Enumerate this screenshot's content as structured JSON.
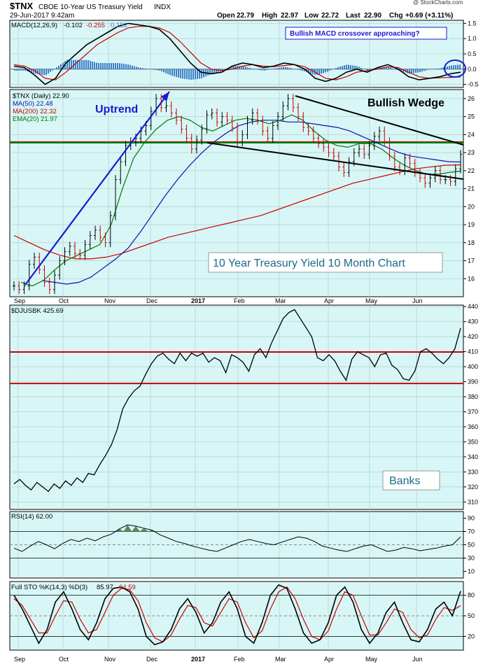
{
  "header": {
    "symbol": "$TNX",
    "name": "CBOE 10-Year US Treasury Yield",
    "exchange": "INDX",
    "timestamp": "29-Jun-2017 9:42am",
    "watermark": "@ StockCharts.com",
    "quote": {
      "open_label": "Open",
      "open": "22.79",
      "high_label": "High",
      "high": "22.97",
      "low_label": "Low",
      "low": "22.72",
      "last_label": "Last",
      "last": "22.90",
      "chg_label": "Chg",
      "chg": "+0.69 (+3.11%)"
    }
  },
  "months": [
    "Sep",
    "Oct",
    "Nov",
    "Dec",
    "2017",
    "Feb",
    "Mar",
    "Apr",
    "May",
    "Jun"
  ],
  "colors": {
    "panel_bg": "#d8f6f6",
    "price_up": "#000000",
    "price_down": "#cc0000",
    "ma50": "#1010b0",
    "ma200": "#cc0000",
    "ema20": "#007a00",
    "trend_blue": "#1a1ad0",
    "wedge": "#000000",
    "hline_red": "#cc0000",
    "hline_green": "#008800",
    "macd_hist": "#3a80c8",
    "rsi_fill": "#5a8a5a"
  },
  "panels": {
    "macd": {
      "legend_prefix": "MACD(12,26,9)",
      "macd_value": "-0.102",
      "signal_value": "-0.255",
      "hist_value": "0.153",
      "annotation": "Bullish MACD crossover approaching?",
      "ticks": [
        "1.5",
        "1.0",
        "0.5",
        "0.0",
        "-0.5"
      ]
    },
    "price": {
      "legend_title": "$TNX (Daily) 22.90",
      "ma50_legend": "MA(50) 22.48",
      "ma200_legend": "MA(200) 22.32",
      "ema20_legend": "EMA(20) 21.97",
      "uptrend_label": "Uptrend",
      "wedge_label": "Bullish Wedge",
      "chart_title": "10 Year Treasury Yield 10 Month Chart",
      "ticks": [
        "26",
        "25",
        "24",
        "23",
        "22",
        "21",
        "20",
        "19",
        "18",
        "17",
        "16"
      ]
    },
    "banks": {
      "legend": "$DJUSBK 425.69",
      "label": "Banks",
      "ticks": [
        "440",
        "430",
        "420",
        "410",
        "400",
        "390",
        "380",
        "370",
        "360",
        "350",
        "340",
        "330",
        "320",
        "310"
      ]
    },
    "rsi": {
      "legend": "RSI(14) 62.00",
      "ticks": [
        "90",
        "70",
        "50",
        "30",
        "10"
      ]
    },
    "sto": {
      "legend_prefix": "Full STO %K(14,3) %D(3)",
      "k_value": "85.97",
      "d_value": "64.59",
      "ticks": [
        "80",
        "50",
        "20"
      ]
    }
  },
  "chart_data": [
    {
      "type": "line",
      "title": "MACD(12,26,9)",
      "x_range": [
        "2016-09-01",
        "2017-06-29"
      ],
      "ylim": [
        -0.6,
        1.6
      ],
      "series": [
        {
          "name": "MACD",
          "values": [
            0.1,
            0.05,
            -0.2,
            -0.5,
            -0.3,
            0.2,
            0.5,
            0.8,
            1.0,
            1.2,
            1.4,
            1.5,
            1.45,
            1.4,
            1.3,
            1.0,
            0.6,
            0.2,
            -0.1,
            -0.15,
            -0.1,
            0.1,
            0.2,
            0.15,
            0.05,
            0.1,
            0.2,
            0.15,
            0.0,
            -0.3,
            -0.4,
            -0.3,
            -0.1,
            0.0,
            -0.1,
            0.05,
            0.15,
            0.0,
            -0.25,
            -0.35,
            -0.3,
            -0.25,
            -0.15,
            -0.1
          ]
        },
        {
          "name": "Signal",
          "values": [
            0.15,
            0.1,
            -0.05,
            -0.3,
            -0.35,
            -0.1,
            0.2,
            0.5,
            0.8,
            1.0,
            1.2,
            1.35,
            1.4,
            1.4,
            1.35,
            1.2,
            0.9,
            0.55,
            0.2,
            0.0,
            -0.05,
            0.0,
            0.1,
            0.15,
            0.1,
            0.08,
            0.12,
            0.15,
            0.08,
            -0.1,
            -0.3,
            -0.35,
            -0.25,
            -0.1,
            -0.05,
            0.0,
            0.08,
            0.05,
            -0.1,
            -0.25,
            -0.3,
            -0.28,
            -0.27,
            -0.255
          ]
        },
        {
          "name": "Histogram",
          "values": [
            0.153
          ]
        }
      ]
    },
    {
      "type": "line",
      "title": "$TNX (Daily) 22.90",
      "ylim": [
        15,
        26.5
      ],
      "x_range": [
        "2016-09-01",
        "2017-06-29"
      ],
      "series": [
        {
          "name": "$TNX",
          "values": [
            15.6,
            15.4,
            15.6,
            16.8,
            17.2,
            16.5,
            15.8,
            15.4,
            16.2,
            17.0,
            17.5,
            17.8,
            17.4,
            17.3,
            17.9,
            18.4,
            18.7,
            18.3,
            18.0,
            19.5,
            21.5,
            22.5,
            23.4,
            23.6,
            23.8,
            24.2,
            24.5,
            25.3,
            26.0,
            25.5,
            25.6,
            25.2,
            24.8,
            24.3,
            23.8,
            23.2,
            23.7,
            24.3,
            25.1,
            25.2,
            24.7,
            25.0,
            24.8,
            24.4,
            23.6,
            24.0,
            24.8,
            25.2,
            24.8,
            24.2,
            23.8,
            24.5,
            25.0,
            25.6,
            26.0,
            25.5,
            25.0,
            24.4,
            24.2,
            23.8,
            23.5,
            23.3,
            23.0,
            22.8,
            22.2,
            21.9,
            22.5,
            23.0,
            23.2,
            22.9,
            23.4,
            23.9,
            24.2,
            23.6,
            22.8,
            22.2,
            22.0,
            22.7,
            22.4,
            21.9,
            21.6,
            21.3,
            21.6,
            22.0,
            21.5,
            21.5,
            21.4,
            22.1,
            22.9
          ]
        },
        {
          "name": "MA(50)",
          "values": [
            15.9,
            15.8,
            15.7,
            15.8,
            16.1,
            16.6,
            17.1,
            17.7,
            18.6,
            19.6,
            20.6,
            21.5,
            22.3,
            23.0,
            23.6,
            24.1,
            24.5,
            24.7,
            24.8,
            24.8,
            24.7,
            24.7,
            24.6,
            24.5,
            24.4,
            24.2,
            23.9,
            23.6,
            23.3,
            23.0,
            22.8,
            22.7,
            22.6,
            22.5,
            22.48
          ]
        },
        {
          "name": "MA(200)",
          "values": [
            18.4,
            18.0,
            17.6,
            17.3,
            17.1,
            17.1,
            17.2,
            17.4,
            17.7,
            18.0,
            18.3,
            18.5,
            18.7,
            18.9,
            19.1,
            19.3,
            19.5,
            19.8,
            20.1,
            20.4,
            20.7,
            21.0,
            21.3,
            21.5,
            21.7,
            21.9,
            22.1,
            22.2,
            22.3,
            22.32
          ]
        },
        {
          "name": "EMA(20)",
          "values": [
            15.8,
            15.6,
            15.9,
            16.5,
            17.0,
            17.3,
            17.6,
            17.9,
            19.0,
            21.0,
            22.7,
            23.6,
            24.3,
            24.8,
            25.0,
            24.8,
            24.4,
            24.2,
            24.5,
            24.8,
            24.9,
            24.8,
            24.6,
            24.8,
            25.1,
            24.8,
            24.2,
            23.7,
            23.4,
            23.3,
            23.5,
            23.5,
            23.2,
            22.7,
            22.3,
            22.0,
            21.8,
            21.8,
            21.9,
            21.97
          ]
        }
      ]
    },
    {
      "type": "line",
      "title": "$DJUSBK 425.69",
      "ylim": [
        305,
        441
      ],
      "series": [
        {
          "name": "$DJUSBK",
          "values": [
            322,
            325,
            321,
            318,
            323,
            320,
            317,
            322,
            319,
            324,
            321,
            326,
            323,
            329,
            328,
            335,
            341,
            348,
            358,
            372,
            379,
            384,
            387,
            395,
            402,
            407,
            409,
            405,
            402,
            409,
            404,
            409,
            407,
            409,
            403,
            406,
            404,
            396,
            408,
            406,
            403,
            397,
            408,
            412,
            406,
            416,
            424,
            432,
            436,
            438,
            432,
            426,
            420,
            406,
            404,
            408,
            404,
            397,
            391,
            405,
            410,
            408,
            406,
            400,
            408,
            409,
            401,
            398,
            392,
            391,
            397,
            410,
            412,
            409,
            405,
            402,
            406,
            412,
            425.69
          ]
        }
      ]
    },
    {
      "type": "line",
      "title": "RSI(14) 62.00",
      "ylim": [
        0,
        100
      ],
      "series": [
        {
          "name": "RSI(14)",
          "values": [
            45,
            40,
            48,
            55,
            50,
            44,
            52,
            58,
            55,
            60,
            56,
            62,
            66,
            74,
            80,
            78,
            75,
            72,
            65,
            60,
            55,
            52,
            48,
            45,
            42,
            40,
            45,
            50,
            55,
            58,
            55,
            52,
            50,
            54,
            58,
            62,
            60,
            55,
            48,
            45,
            42,
            40,
            44,
            48,
            50,
            45,
            40,
            42,
            46,
            44,
            41,
            43,
            45,
            48,
            50,
            62
          ]
        }
      ]
    },
    {
      "type": "line",
      "title": "Full STO %K(14,3) %D(3)",
      "ylim": [
        0,
        100
      ],
      "series": [
        {
          "name": "%K(14,3)",
          "values": [
            80,
            60,
            35,
            10,
            30,
            70,
            85,
            60,
            30,
            15,
            40,
            75,
            90,
            92,
            85,
            60,
            20,
            8,
            12,
            30,
            60,
            75,
            55,
            25,
            40,
            70,
            85,
            60,
            20,
            10,
            40,
            80,
            95,
            90,
            60,
            25,
            10,
            15,
            40,
            80,
            92,
            70,
            30,
            10,
            25,
            55,
            70,
            40,
            15,
            12,
            30,
            60,
            70,
            50,
            85.97
          ]
        },
        {
          "name": "%D(3)",
          "values": [
            75,
            65,
            45,
            25,
            25,
            50,
            72,
            70,
            45,
            25,
            30,
            55,
            80,
            90,
            88,
            72,
            40,
            18,
            12,
            22,
            45,
            65,
            62,
            40,
            35,
            55,
            75,
            70,
            40,
            18,
            28,
            60,
            85,
            92,
            75,
            45,
            20,
            15,
            28,
            60,
            85,
            80,
            50,
            22,
            22,
            40,
            60,
            55,
            30,
            18,
            22,
            45,
            62,
            58,
            64.59
          ]
        }
      ]
    }
  ]
}
